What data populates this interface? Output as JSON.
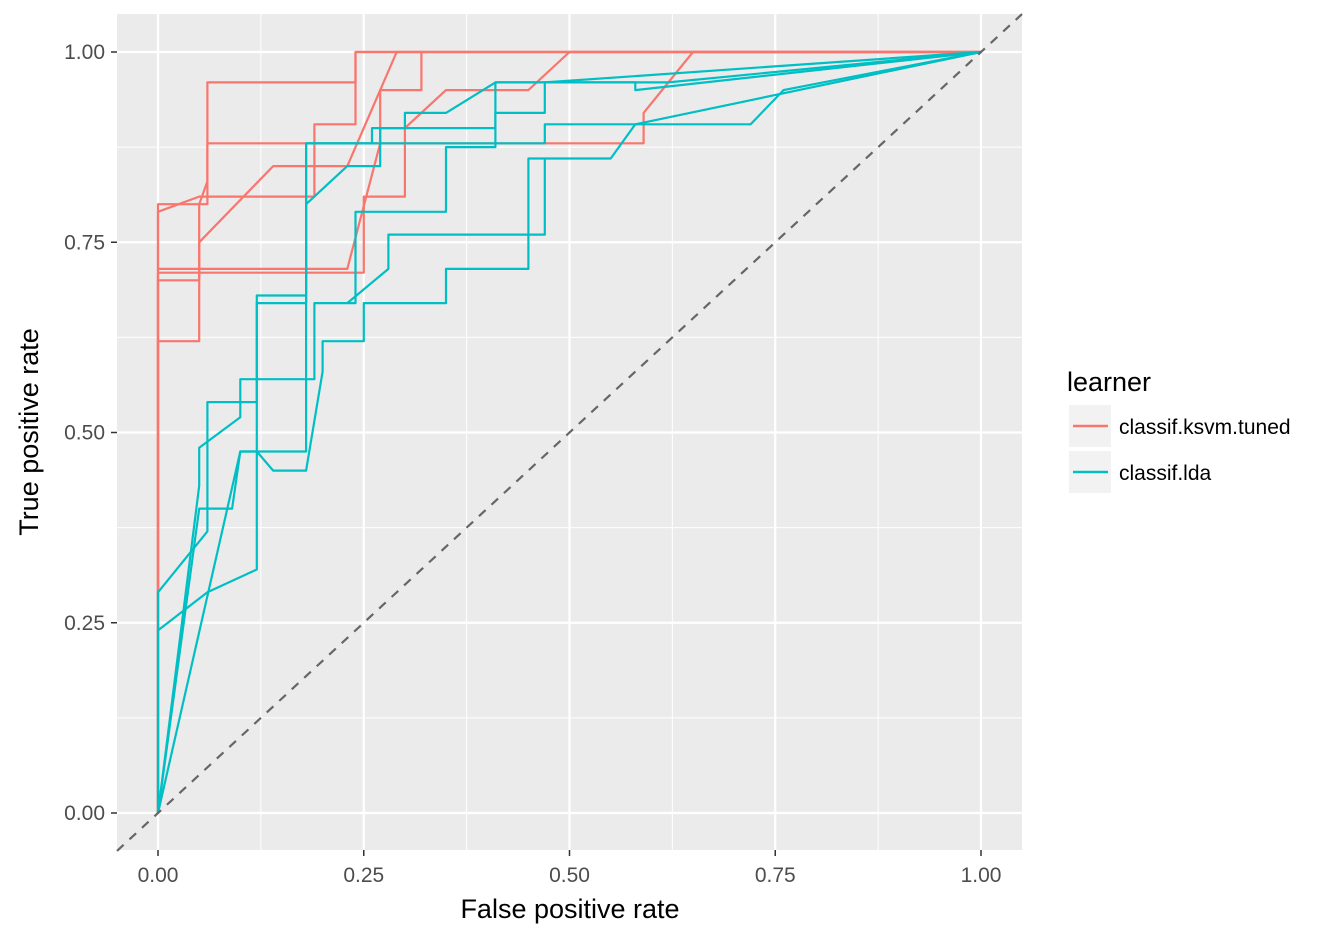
{
  "chart_data": {
    "type": "line",
    "title": "",
    "xlabel": "False positive rate",
    "ylabel": "True positive rate",
    "xlim": [
      -0.05,
      1.05
    ],
    "ylim": [
      -0.05,
      1.05
    ],
    "x_ticks": [
      "0.00",
      "0.25",
      "0.50",
      "0.75",
      "1.00"
    ],
    "y_ticks": [
      "0.00",
      "0.25",
      "0.50",
      "0.75",
      "1.00"
    ],
    "grid": true,
    "legend": {
      "title": "learner",
      "position": "right",
      "entries": [
        {
          "label": "classif.ksvm.tuned",
          "color": "#F8766D"
        },
        {
          "label": "classif.lda",
          "color": "#00BFC4"
        }
      ]
    },
    "reference_line": {
      "style": "dashed",
      "color": "#666666",
      "slope": 1,
      "intercept": 0
    },
    "series": [
      {
        "group": "classif.ksvm.tuned",
        "color": "#F8766D",
        "points": [
          [
            0,
            0
          ],
          [
            0,
            0.79
          ],
          [
            0.05,
            0.81
          ],
          [
            0.06,
            0.81
          ],
          [
            0.19,
            0.81
          ],
          [
            0.19,
            0.905
          ],
          [
            0.24,
            0.905
          ],
          [
            0.24,
            1
          ],
          [
            1,
            1
          ]
        ]
      },
      {
        "group": "classif.ksvm.tuned",
        "color": "#F8766D",
        "points": [
          [
            0,
            0
          ],
          [
            0,
            0.8
          ],
          [
            0.06,
            0.8
          ],
          [
            0.06,
            0.96
          ],
          [
            0.24,
            0.96
          ],
          [
            0.24,
            1
          ],
          [
            1,
            1
          ]
        ]
      },
      {
        "group": "classif.ksvm.tuned",
        "color": "#F8766D",
        "points": [
          [
            0,
            0
          ],
          [
            0,
            0.71
          ],
          [
            0.25,
            0.71
          ],
          [
            0.25,
            0.81
          ],
          [
            0.3,
            0.81
          ],
          [
            0.3,
            0.9
          ],
          [
            0.35,
            0.95
          ],
          [
            0.45,
            0.95
          ],
          [
            0.5,
            1
          ],
          [
            1,
            1
          ]
        ]
      },
      {
        "group": "classif.ksvm.tuned",
        "color": "#F8766D",
        "points": [
          [
            0,
            0
          ],
          [
            0,
            0.62
          ],
          [
            0.05,
            0.62
          ],
          [
            0.05,
            0.75
          ],
          [
            0.14,
            0.85
          ],
          [
            0.23,
            0.85
          ],
          [
            0.29,
            1
          ],
          [
            1,
            1
          ]
        ]
      },
      {
        "group": "classif.ksvm.tuned",
        "color": "#F8766D",
        "points": [
          [
            0,
            0
          ],
          [
            0,
            0.7
          ],
          [
            0.05,
            0.7
          ],
          [
            0.05,
            0.8
          ],
          [
            0.06,
            0.83
          ],
          [
            0.06,
            0.88
          ],
          [
            0.59,
            0.88
          ],
          [
            0.59,
            0.92
          ],
          [
            0.65,
            1
          ],
          [
            1,
            1
          ]
        ]
      },
      {
        "group": "classif.ksvm.tuned",
        "color": "#F8766D",
        "points": [
          [
            0,
            0.715
          ],
          [
            0.23,
            0.715
          ],
          [
            0.27,
            0.88
          ],
          [
            0.27,
            0.95
          ],
          [
            0.32,
            0.95
          ],
          [
            0.32,
            1
          ]
        ]
      },
      {
        "group": "classif.lda",
        "color": "#00BFC4",
        "points": [
          [
            0,
            0
          ],
          [
            0,
            0.29
          ],
          [
            0.06,
            0.37
          ],
          [
            0.06,
            0.54
          ],
          [
            0.12,
            0.54
          ],
          [
            0.12,
            0.68
          ],
          [
            0.18,
            0.68
          ],
          [
            0.18,
            0.8
          ],
          [
            0.23,
            0.85
          ],
          [
            0.27,
            0.85
          ],
          [
            0.27,
            0.9
          ],
          [
            0.41,
            0.9
          ],
          [
            0.41,
            0.92
          ],
          [
            0.47,
            0.92
          ],
          [
            0.47,
            0.96
          ],
          [
            1,
            1
          ]
        ]
      },
      {
        "group": "classif.lda",
        "color": "#00BFC4",
        "points": [
          [
            0,
            0
          ],
          [
            0,
            0.24
          ],
          [
            0.06,
            0.29
          ],
          [
            0.12,
            0.32
          ],
          [
            0.12,
            0.67
          ],
          [
            0.18,
            0.67
          ],
          [
            0.18,
            0.88
          ],
          [
            0.26,
            0.88
          ],
          [
            0.26,
            0.9
          ],
          [
            0.3,
            0.9
          ],
          [
            0.3,
            0.92
          ],
          [
            0.35,
            0.92
          ],
          [
            0.41,
            0.96
          ],
          [
            0.62,
            0.96
          ],
          [
            1,
            1
          ]
        ]
      },
      {
        "group": "classif.lda",
        "color": "#00BFC4",
        "points": [
          [
            0,
            0
          ],
          [
            0.05,
            0.43
          ],
          [
            0.05,
            0.48
          ],
          [
            0.1,
            0.52
          ],
          [
            0.1,
            0.57
          ],
          [
            0.19,
            0.57
          ],
          [
            0.19,
            0.67
          ],
          [
            0.24,
            0.67
          ],
          [
            0.24,
            0.79
          ],
          [
            0.35,
            0.79
          ],
          [
            0.35,
            0.875
          ],
          [
            0.41,
            0.875
          ],
          [
            0.41,
            0.96
          ],
          [
            0.58,
            0.96
          ],
          [
            0.58,
            0.95
          ],
          [
            1,
            1
          ]
        ]
      },
      {
        "group": "classif.lda",
        "color": "#00BFC4",
        "points": [
          [
            0,
            0
          ],
          [
            0.05,
            0.4
          ],
          [
            0.09,
            0.4
          ],
          [
            0.1,
            0.475
          ],
          [
            0.18,
            0.475
          ],
          [
            0.18,
            0.88
          ],
          [
            0.29,
            0.88
          ],
          [
            0.29,
            0.88
          ],
          [
            0.47,
            0.88
          ],
          [
            0.47,
            0.905
          ],
          [
            0.72,
            0.905
          ],
          [
            0.76,
            0.95
          ],
          [
            1,
            1
          ]
        ]
      },
      {
        "group": "classif.lda",
        "color": "#00BFC4",
        "points": [
          [
            0,
            0
          ],
          [
            0.1,
            0.475
          ],
          [
            0.12,
            0.475
          ],
          [
            0.14,
            0.45
          ],
          [
            0.18,
            0.45
          ],
          [
            0.2,
            0.58
          ],
          [
            0.2,
            0.62
          ],
          [
            0.25,
            0.62
          ],
          [
            0.25,
            0.67
          ],
          [
            0.35,
            0.67
          ],
          [
            0.35,
            0.715
          ],
          [
            0.45,
            0.715
          ],
          [
            0.45,
            0.86
          ],
          [
            0.55,
            0.86
          ],
          [
            0.58,
            0.905
          ],
          [
            1,
            1
          ]
        ]
      },
      {
        "group": "classif.lda",
        "color": "#00BFC4",
        "points": [
          [
            0.23,
            0.67
          ],
          [
            0.28,
            0.715
          ],
          [
            0.28,
            0.76
          ],
          [
            0.47,
            0.76
          ],
          [
            0.47,
            0.86
          ]
        ]
      }
    ]
  }
}
